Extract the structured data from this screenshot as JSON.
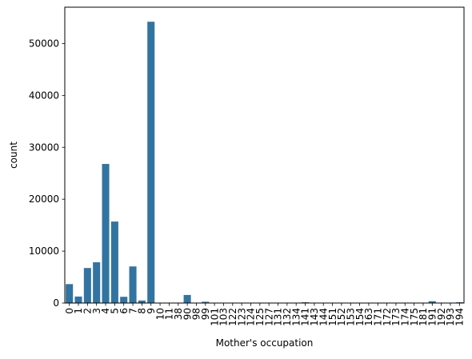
{
  "chart_data": {
    "type": "bar",
    "title": "",
    "xlabel": "Mother's occupation",
    "ylabel": "count",
    "ylim": [
      0,
      57000
    ],
    "yticks": [
      0,
      10000,
      20000,
      30000,
      40000,
      50000
    ],
    "grid": false,
    "bar_color": "#3274a1",
    "categories": [
      "0",
      "1",
      "2",
      "3",
      "4",
      "5",
      "6",
      "7",
      "8",
      "9",
      "10",
      "11",
      "38",
      "90",
      "98",
      "99",
      "101",
      "103",
      "122",
      "123",
      "124",
      "125",
      "127",
      "131",
      "132",
      "134",
      "141",
      "143",
      "144",
      "151",
      "152",
      "153",
      "154",
      "163",
      "171",
      "172",
      "173",
      "174",
      "175",
      "181",
      "191",
      "192",
      "193",
      "194"
    ],
    "values": [
      3650,
      1250,
      6750,
      7850,
      26800,
      15700,
      1200,
      7050,
      480,
      54200,
      40,
      20,
      60,
      1550,
      60,
      250,
      20,
      20,
      20,
      20,
      20,
      20,
      20,
      20,
      20,
      20,
      150,
      20,
      20,
      20,
      20,
      20,
      20,
      20,
      20,
      20,
      20,
      20,
      20,
      20,
      350,
      20,
      20,
      150
    ]
  }
}
